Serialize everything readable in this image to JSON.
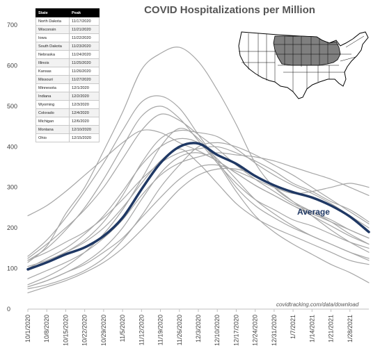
{
  "title": "COVID Hospitalizations per Million",
  "source": "covidtracking.com/data/download",
  "average_label": "Average",
  "peak_table": {
    "headers": [
      "State",
      "Peak"
    ],
    "rows": [
      [
        "North Dakota",
        "11/17/2020"
      ],
      [
        "Wisconsin",
        "11/21/2020"
      ],
      [
        "Iowa",
        "11/22/2020"
      ],
      [
        "South Dakota",
        "11/23/2020"
      ],
      [
        "Nebraska",
        "11/24/2020"
      ],
      [
        "Illinois",
        "11/25/2020"
      ],
      [
        "Kansas",
        "11/26/2020"
      ],
      [
        "Missouri",
        "11/27/2020"
      ],
      [
        "Minnesota",
        "12/1/2020"
      ],
      [
        "Indiana",
        "12/2/2020"
      ],
      [
        "Wyoming",
        "12/3/2020"
      ],
      [
        "Colorado",
        "12/4/2020"
      ],
      [
        "Michigan",
        "12/6/2020"
      ],
      [
        "Montana",
        "12/10/2020"
      ],
      [
        "Ohio",
        "12/15/2020"
      ]
    ]
  },
  "colors": {
    "average": "#1f3864",
    "states": "#a6a6a6",
    "axis": "#bfbfbf",
    "map_highlight": "#7f7f7f"
  },
  "chart_data": {
    "type": "line",
    "title": "COVID Hospitalizations per Million",
    "ylim": [
      0,
      700
    ],
    "yticks": [
      0,
      100,
      200,
      300,
      400,
      500,
      600,
      700
    ],
    "xlim": [
      "10/1/2020",
      "2/4/2021"
    ],
    "xticks": [
      "10/1/2020",
      "10/8/2020",
      "10/15/2020",
      "10/22/2020",
      "10/29/2020",
      "11/5/2020",
      "11/12/2020",
      "11/19/2020",
      "11/26/2020",
      "12/3/2020",
      "12/10/2020",
      "12/17/2020",
      "12/24/2020",
      "12/31/2020",
      "1/7/2021",
      "1/14/2021",
      "1/21/2021",
      "1/28/2021"
    ],
    "grid": false,
    "legend": "none",
    "x": [
      "10/1/2020",
      "10/8/2020",
      "10/15/2020",
      "10/22/2020",
      "10/29/2020",
      "11/5/2020",
      "11/12/2020",
      "11/19/2020",
      "11/26/2020",
      "12/3/2020",
      "12/10/2020",
      "12/17/2020",
      "12/24/2020",
      "12/31/2020",
      "1/7/2021",
      "1/14/2021",
      "1/21/2021",
      "1/28/2021",
      "2/4/2021"
    ],
    "series": [
      {
        "name": "Average",
        "values": [
          98,
          115,
          135,
          152,
          180,
          225,
          295,
          360,
          400,
          408,
          380,
          358,
          328,
          305,
          288,
          275,
          255,
          228,
          190
        ]
      },
      {
        "values": [
          115,
          155,
          235,
          300,
          390,
          485,
          590,
          630,
          645,
          610,
          540,
          455,
          360,
          300,
          265,
          240,
          215,
          185,
          160
        ]
      },
      {
        "values": [
          130,
          170,
          225,
          290,
          360,
          440,
          510,
          525,
          495,
          430,
          365,
          300,
          255,
          225,
          200,
          180,
          160,
          140,
          120
        ]
      },
      {
        "values": [
          120,
          150,
          195,
          250,
          320,
          400,
          475,
          500,
          470,
          415,
          360,
          310,
          270,
          245,
          220,
          205,
          185,
          165,
          150
        ]
      },
      {
        "values": [
          125,
          160,
          200,
          245,
          300,
          370,
          440,
          480,
          465,
          430,
          395,
          355,
          320,
          290,
          260,
          240,
          220,
          195,
          175
        ]
      },
      {
        "values": [
          100,
          125,
          150,
          185,
          230,
          290,
          355,
          400,
          420,
          410,
          370,
          320,
          270,
          235,
          205,
          180,
          160,
          140,
          125
        ]
      },
      {
        "values": [
          95,
          115,
          140,
          170,
          215,
          280,
          360,
          420,
          440,
          435,
          425,
          395,
          360,
          330,
          305,
          285,
          260,
          230,
          200
        ]
      },
      {
        "values": [
          120,
          140,
          165,
          190,
          225,
          270,
          320,
          360,
          385,
          395,
          400,
          385,
          365,
          340,
          310,
          290,
          265,
          245,
          215
        ]
      },
      {
        "values": [
          75,
          95,
          115,
          140,
          175,
          220,
          280,
          330,
          360,
          375,
          385,
          380,
          375,
          365,
          350,
          335,
          320,
          300,
          280
        ]
      },
      {
        "values": [
          55,
          70,
          90,
          115,
          150,
          200,
          270,
          335,
          375,
          385,
          365,
          335,
          305,
          280,
          255,
          230,
          205,
          180,
          160
        ]
      },
      {
        "values": [
          50,
          60,
          75,
          95,
          125,
          170,
          230,
          300,
          355,
          400,
          410,
          400,
          380,
          355,
          330,
          300,
          270,
          240,
          210
        ]
      },
      {
        "values": [
          230,
          255,
          290,
          330,
          370,
          410,
          440,
          435,
          410,
          390,
          365,
          335,
          305,
          280,
          255,
          235,
          215,
          195,
          175
        ]
      },
      {
        "values": [
          55,
          70,
          90,
          110,
          140,
          175,
          225,
          275,
          320,
          350,
          355,
          340,
          320,
          300,
          285,
          290,
          300,
          310,
          300
        ]
      },
      {
        "values": [
          40,
          55,
          70,
          90,
          115,
          150,
          195,
          245,
          295,
          330,
          345,
          345,
          330,
          300,
          265,
          230,
          195,
          165,
          140
        ]
      },
      {
        "values": [
          105,
          120,
          140,
          165,
          200,
          250,
          310,
          365,
          395,
          360,
          310,
          260,
          225,
          200,
          180,
          160,
          140,
          120,
          110
        ]
      },
      {
        "values": [
          60,
          80,
          105,
          140,
          185,
          245,
          320,
          400,
          445,
          420,
          360,
          290,
          230,
          190,
          160,
          135,
          110,
          90,
          65
        ]
      }
    ]
  }
}
